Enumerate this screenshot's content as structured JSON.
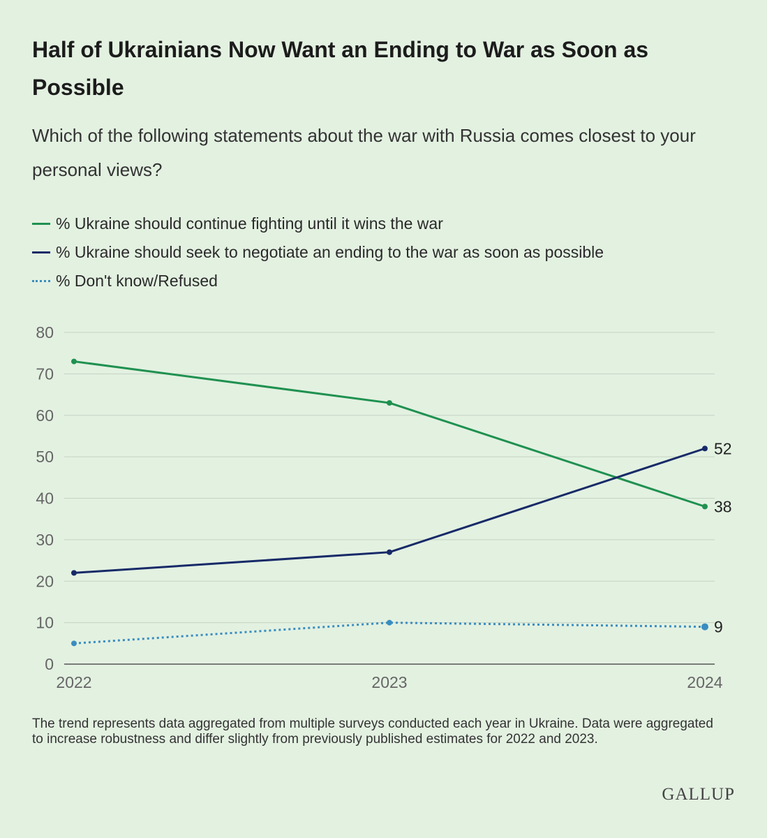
{
  "title": "Half of Ukrainians Now Want an Ending to War as Soon as Possible",
  "subtitle": "Which of the following statements about the war with Russia comes closest to your personal views?",
  "note": "The trend represents data aggregated from multiple surveys conducted each year in Ukraine. Data were aggregated to increase robustness and differ slightly from previously published estimates for 2022 and 2023.",
  "brand": "GALLUP",
  "chart_data": {
    "type": "line",
    "x": [
      "2022",
      "2023",
      "2024"
    ],
    "ylim": [
      0,
      80
    ],
    "yticks": [
      0,
      10,
      20,
      30,
      40,
      50,
      60,
      70,
      80
    ],
    "grid": true,
    "legend_position": "top-left",
    "series": [
      {
        "name": "% Ukraine should continue fighting until it wins the war",
        "values": [
          73,
          63,
          38
        ],
        "color": "#1f9150",
        "style": "solid",
        "end_label": "38"
      },
      {
        "name": "% Ukraine should seek to negotiate an ending to the war as soon as possible",
        "values": [
          22,
          27,
          52
        ],
        "color": "#172a68",
        "style": "solid",
        "end_label": "52"
      },
      {
        "name": "% Don't know/Refused",
        "values": [
          5,
          10,
          9
        ],
        "color": "#3a8dbf",
        "style": "dotted",
        "end_label": "9"
      }
    ]
  }
}
